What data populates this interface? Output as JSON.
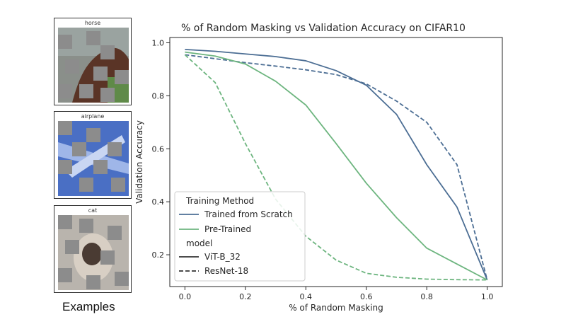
{
  "examples": {
    "caption": "Examples",
    "items": [
      {
        "label": "horse"
      },
      {
        "label": "airplane"
      },
      {
        "label": "cat"
      }
    ]
  },
  "chart_data": {
    "type": "line",
    "title": "% of Random Masking vs Validation Accuracy on CIFAR10",
    "xlabel": "% of Random Masking",
    "ylabel": "Validation Accuracy",
    "xlim": [
      -0.05,
      1.05
    ],
    "ylim": [
      0.08,
      1.02
    ],
    "x_ticks": [
      0.0,
      0.2,
      0.4,
      0.6,
      0.8,
      1.0
    ],
    "y_ticks": [
      0.2,
      0.4,
      0.6,
      0.8,
      1.0
    ],
    "x": [
      0.0,
      0.1,
      0.2,
      0.3,
      0.4,
      0.5,
      0.6,
      0.7,
      0.8,
      0.9,
      1.0
    ],
    "series": [
      {
        "training_method": "Trained from Scratch",
        "model": "ViT-B_32",
        "color": "#4c6e94",
        "dash": "solid",
        "values": [
          0.975,
          0.968,
          0.958,
          0.948,
          0.932,
          0.895,
          0.84,
          0.73,
          0.54,
          0.38,
          0.105
        ]
      },
      {
        "training_method": "Trained from Scratch",
        "model": "ResNet-18",
        "color": "#4c6e94",
        "dash": "dashed",
        "values": [
          0.955,
          0.94,
          0.925,
          0.912,
          0.898,
          0.88,
          0.845,
          0.78,
          0.7,
          0.54,
          0.105
        ]
      },
      {
        "training_method": "Pre-Trained",
        "model": "ViT-B_32",
        "color": "#6db57f",
        "dash": "solid",
        "values": [
          0.965,
          0.95,
          0.92,
          0.855,
          0.765,
          0.62,
          0.47,
          0.34,
          0.225,
          0.165,
          0.105
        ]
      },
      {
        "training_method": "Pre-Trained",
        "model": "ResNet-18",
        "color": "#6db57f",
        "dash": "dashed",
        "values": [
          0.955,
          0.85,
          0.62,
          0.41,
          0.27,
          0.18,
          0.13,
          0.115,
          0.108,
          0.106,
          0.105
        ]
      }
    ],
    "legend": {
      "placement": "lower-left",
      "title": "Training Method",
      "entries": [
        {
          "label": "Trained from Scratch",
          "color": "#4c6e94",
          "dash": "solid"
        },
        {
          "label": "Pre-Trained",
          "color": "#6db57f",
          "dash": "solid"
        }
      ],
      "subtitle": "model",
      "model_entries": [
        {
          "label": "ViT-B_32",
          "color": "#333333",
          "dash": "solid"
        },
        {
          "label": "ResNet-18",
          "color": "#333333",
          "dash": "dashed"
        }
      ]
    }
  }
}
